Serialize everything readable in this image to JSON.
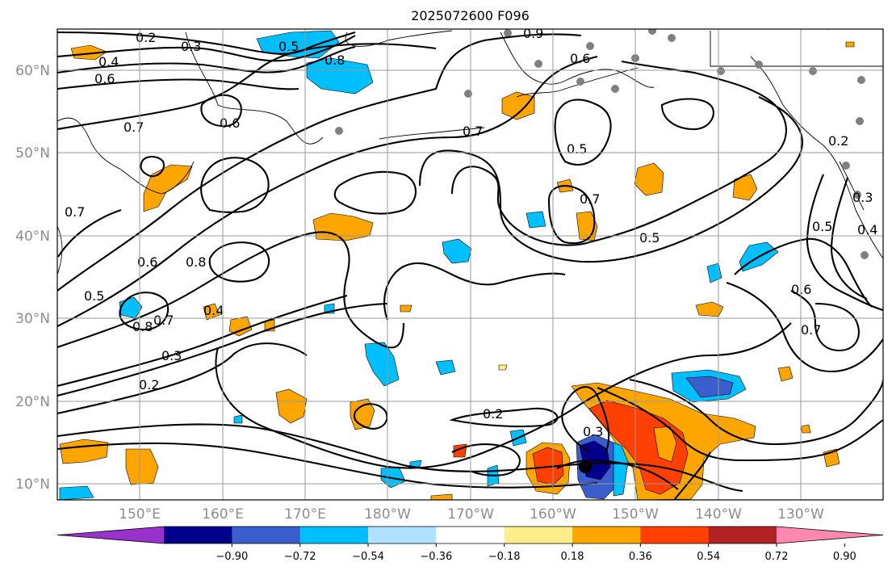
{
  "title": "2025072600 F096",
  "lat_labels": [
    "60°N",
    "50°N",
    "40°N",
    "30°N",
    "20°N",
    "10°N"
  ],
  "lon_labels": [
    "150°E",
    "160°E",
    "170°E",
    "180°W",
    "170°W",
    "160°W",
    "150°W",
    "140°W",
    "130°W"
  ],
  "colorbar": {
    "colors": [
      "#9932cc",
      "#00008b",
      "#3a5fcd",
      "#00bfff",
      "#b0e2ff",
      "#ffffff",
      "#ffec8b",
      "#ffa500",
      "#ff4000",
      "#b22222",
      "#ff88b0"
    ],
    "tick_labels": [
      "−0.90",
      "−0.72",
      "−0.54",
      "−0.36",
      "−0.18",
      "0.18",
      "0.36",
      "0.54",
      "0.72",
      "0.90"
    ]
  },
  "contour_labels": [
    "0.2",
    "0.3",
    "0.4",
    "0.5",
    "0.6",
    "0.7",
    "0.8"
  ]
}
